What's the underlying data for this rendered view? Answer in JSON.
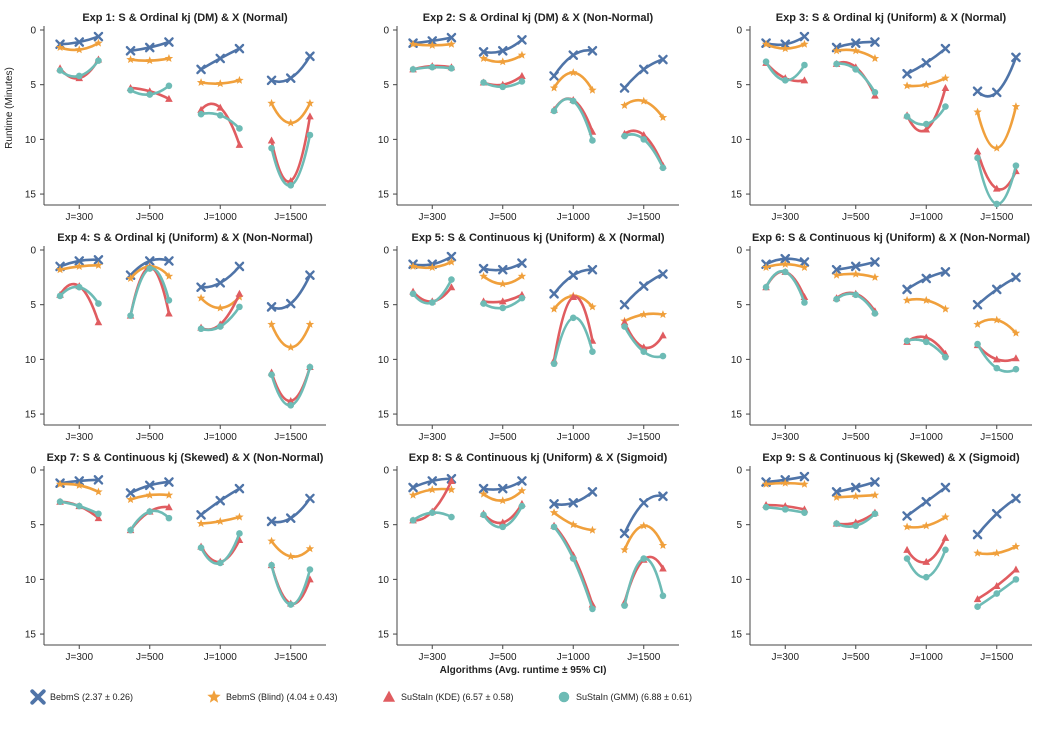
{
  "figure": {
    "ylabel": "Runtime (Minutes)",
    "xlabel": "Algorithms (Avg. runtime ± 95% CI)"
  },
  "legend": [
    {
      "label": "BebmS (2.37 ± 0.26)",
      "color": "#4f74a8",
      "marker": "x"
    },
    {
      "label": "BebmS (Blind) (4.04 ± 0.43)",
      "color": "#f0a03c",
      "marker": "star"
    },
    {
      "label": "SuStaIn (KDE) (6.57 ± 0.58)",
      "color": "#e05c60",
      "marker": "triangle"
    },
    {
      "label": "SuStaIn (GMM) (6.88 ± 0.61)",
      "color": "#6dbbb5",
      "marker": "circle"
    }
  ],
  "chart_data": [
    {
      "type": "line",
      "title": "Exp 1: S & Ordinal kj (DM) & X (Normal)",
      "categories": [
        "J=300",
        "J=500",
        "J=1000",
        "J=1500"
      ],
      "ylim": [
        0,
        16
      ],
      "y_inverted": true,
      "y_ticks": [
        0,
        5,
        10,
        15
      ],
      "series": [
        {
          "name": "BebmS",
          "values": [
            [
              1.3,
              1.1,
              0.6
            ],
            [
              1.9,
              1.6,
              1.1
            ],
            [
              3.6,
              2.6,
              1.7
            ],
            [
              4.6,
              4.4,
              2.4
            ]
          ]
        },
        {
          "name": "BebmS (Blind)",
          "values": [
            [
              1.6,
              1.8,
              1.2
            ],
            [
              2.7,
              2.8,
              2.6
            ],
            [
              4.8,
              4.9,
              4.6
            ],
            [
              6.7,
              8.5,
              6.7
            ]
          ]
        },
        {
          "name": "SuStaIn (KDE)",
          "values": [
            [
              3.5,
              4.4,
              2.7
            ],
            [
              5.3,
              5.6,
              6.3
            ],
            [
              7.3,
              7.1,
              10.5
            ],
            [
              10.1,
              13.8,
              7.9
            ]
          ]
        },
        {
          "name": "SuStaIn (GMM)",
          "values": [
            [
              3.7,
              4.2,
              2.8
            ],
            [
              5.5,
              5.9,
              5.1
            ],
            [
              7.7,
              7.8,
              9.0
            ],
            [
              10.8,
              14.2,
              9.6
            ]
          ]
        }
      ]
    },
    {
      "type": "line",
      "title": "Exp 2: S & Ordinal kj (DM) & X (Non-Normal)",
      "categories": [
        "J=300",
        "J=500",
        "J=1000",
        "J=1500"
      ],
      "ylim": [
        0,
        16
      ],
      "y_inverted": true,
      "y_ticks": [
        0,
        5,
        10,
        15
      ],
      "series": [
        {
          "name": "BebmS",
          "values": [
            [
              1.2,
              1.0,
              0.7
            ],
            [
              2.0,
              1.9,
              0.9
            ],
            [
              4.2,
              2.3,
              1.9
            ],
            [
              5.3,
              3.6,
              2.7
            ]
          ]
        },
        {
          "name": "BebmS (Blind)",
          "values": [
            [
              1.3,
              1.4,
              1.3
            ],
            [
              2.6,
              2.9,
              2.3
            ],
            [
              5.3,
              3.9,
              5.5
            ],
            [
              6.9,
              6.5,
              8.0
            ]
          ]
        },
        {
          "name": "SuStaIn (KDE)",
          "values": [
            [
              3.6,
              3.3,
              3.4
            ],
            [
              4.8,
              5.0,
              4.2
            ],
            [
              7.3,
              6.4,
              9.3
            ],
            [
              9.5,
              9.6,
              12.4
            ]
          ]
        },
        {
          "name": "SuStaIn (GMM)",
          "values": [
            [
              3.6,
              3.4,
              3.5
            ],
            [
              4.8,
              5.2,
              4.7
            ],
            [
              7.4,
              6.5,
              10.1
            ],
            [
              9.7,
              10.0,
              12.6
            ]
          ]
        }
      ]
    },
    {
      "type": "line",
      "title": "Exp 3: S & Ordinal kj (Uniform) & X (Normal)",
      "categories": [
        "J=300",
        "J=500",
        "J=1000",
        "J=1500"
      ],
      "ylim": [
        0,
        16
      ],
      "y_inverted": true,
      "y_ticks": [
        0,
        5,
        10,
        15
      ],
      "series": [
        {
          "name": "BebmS",
          "values": [
            [
              1.2,
              1.3,
              0.6
            ],
            [
              1.6,
              1.2,
              1.1
            ],
            [
              4.0,
              3.0,
              1.7
            ],
            [
              5.6,
              5.7,
              2.5
            ]
          ]
        },
        {
          "name": "BebmS (Blind)",
          "values": [
            [
              1.3,
              1.7,
              1.3
            ],
            [
              1.9,
              1.9,
              2.6
            ],
            [
              5.1,
              5.0,
              4.4
            ],
            [
              7.5,
              10.8,
              7.0
            ]
          ]
        },
        {
          "name": "SuStaIn (KDE)",
          "values": [
            [
              3.0,
              4.4,
              4.6
            ],
            [
              3.1,
              3.4,
              6.0
            ],
            [
              7.8,
              9.1,
              5.3
            ],
            [
              11.1,
              14.5,
              12.9
            ]
          ]
        },
        {
          "name": "SuStaIn (GMM)",
          "values": [
            [
              2.9,
              4.6,
              3.2
            ],
            [
              3.1,
              3.6,
              5.7
            ],
            [
              7.9,
              8.6,
              7.0
            ],
            [
              11.7,
              15.9,
              12.4
            ]
          ]
        }
      ]
    },
    {
      "type": "line",
      "title": "Exp 4: S & Ordinal kj (Uniform) & X (Non-Normal)",
      "categories": [
        "J=300",
        "J=500",
        "J=1000",
        "J=1500"
      ],
      "ylim": [
        0,
        16
      ],
      "y_inverted": true,
      "y_ticks": [
        0,
        5,
        10,
        15
      ],
      "series": [
        {
          "name": "BebmS",
          "values": [
            [
              1.5,
              1.0,
              0.9
            ],
            [
              2.3,
              1.0,
              1.0
            ],
            [
              3.4,
              3.0,
              1.5
            ],
            [
              5.2,
              4.9,
              2.3
            ]
          ]
        },
        {
          "name": "BebmS (Blind)",
          "values": [
            [
              1.8,
              1.5,
              1.4
            ],
            [
              2.6,
              1.5,
              2.4
            ],
            [
              4.4,
              5.3,
              4.3
            ],
            [
              6.8,
              8.9,
              6.8
            ]
          ]
        },
        {
          "name": "SuStaIn (KDE)",
          "values": [
            [
              4.1,
              3.3,
              6.6
            ],
            [
              6.0,
              1.6,
              5.8
            ],
            [
              7.1,
              6.8,
              4.0
            ],
            [
              11.2,
              13.8,
              10.7
            ]
          ]
        },
        {
          "name": "SuStaIn (GMM)",
          "values": [
            [
              4.2,
              3.4,
              4.9
            ],
            [
              6.0,
              1.7,
              4.6
            ],
            [
              7.2,
              7.0,
              5.2
            ],
            [
              11.4,
              14.2,
              10.7
            ]
          ]
        }
      ]
    },
    {
      "type": "line",
      "title": "Exp 5: S & Continuous kj (Uniform) & X (Normal)",
      "categories": [
        "J=300",
        "J=500",
        "J=1000",
        "J=1500"
      ],
      "ylim": [
        0,
        16
      ],
      "y_inverted": true,
      "y_ticks": [
        0,
        5,
        10,
        15
      ],
      "series": [
        {
          "name": "BebmS",
          "values": [
            [
              1.3,
              1.3,
              0.6
            ],
            [
              1.7,
              1.8,
              1.2
            ],
            [
              4.0,
              2.3,
              1.8
            ],
            [
              5.0,
              3.3,
              2.2
            ]
          ]
        },
        {
          "name": "BebmS (Blind)",
          "values": [
            [
              1.5,
              1.6,
              1.1
            ],
            [
              2.4,
              3.1,
              2.4
            ],
            [
              5.4,
              4.2,
              5.2
            ],
            [
              6.5,
              5.9,
              5.9
            ]
          ]
        },
        {
          "name": "SuStaIn (KDE)",
          "values": [
            [
              3.8,
              4.7,
              3.4
            ],
            [
              4.7,
              4.7,
              4.1
            ],
            [
              10.1,
              4.3,
              8.3
            ],
            [
              6.6,
              8.9,
              7.8
            ]
          ]
        },
        {
          "name": "SuStaIn (GMM)",
          "values": [
            [
              4.0,
              4.8,
              2.7
            ],
            [
              4.9,
              5.3,
              4.4
            ],
            [
              10.4,
              6.2,
              9.3
            ],
            [
              7.0,
              9.3,
              9.7
            ]
          ]
        }
      ]
    },
    {
      "type": "line",
      "title": "Exp 6: S & Continuous kj (Uniform) & X (Non-Normal)",
      "categories": [
        "J=300",
        "J=500",
        "J=1000",
        "J=1500"
      ],
      "ylim": [
        0,
        16
      ],
      "y_inverted": true,
      "y_ticks": [
        0,
        5,
        10,
        15
      ],
      "series": [
        {
          "name": "BebmS",
          "values": [
            [
              1.3,
              0.8,
              1.1
            ],
            [
              1.8,
              1.5,
              1.1
            ],
            [
              3.6,
              2.6,
              2.0
            ],
            [
              5.0,
              3.6,
              2.5
            ]
          ]
        },
        {
          "name": "BebmS (Blind)",
          "values": [
            [
              1.6,
              1.3,
              1.6
            ],
            [
              2.3,
              2.2,
              2.5
            ],
            [
              4.6,
              4.6,
              5.4
            ],
            [
              6.8,
              6.4,
              7.6
            ]
          ]
        },
        {
          "name": "SuStaIn (KDE)",
          "values": [
            [
              3.4,
              2.0,
              4.3
            ],
            [
              4.4,
              4.0,
              5.6
            ],
            [
              8.4,
              8.0,
              9.5
            ],
            [
              8.7,
              10.0,
              9.9
            ]
          ]
        },
        {
          "name": "SuStaIn (GMM)",
          "values": [
            [
              3.4,
              2.0,
              4.8
            ],
            [
              4.5,
              4.1,
              5.8
            ],
            [
              8.3,
              8.4,
              9.8
            ],
            [
              8.6,
              10.8,
              10.9
            ]
          ]
        }
      ]
    },
    {
      "type": "line",
      "title": "Exp 7: S & Continuous kj (Skewed) & X (Non-Normal)",
      "categories": [
        "J=300",
        "J=500",
        "J=1000",
        "J=1500"
      ],
      "ylim": [
        0,
        16
      ],
      "y_inverted": true,
      "y_ticks": [
        0,
        5,
        10,
        15
      ],
      "series": [
        {
          "name": "BebmS",
          "values": [
            [
              1.2,
              1.0,
              0.9
            ],
            [
              2.1,
              1.4,
              1.1
            ],
            [
              4.1,
              2.8,
              1.7
            ],
            [
              4.7,
              4.4,
              2.6
            ]
          ]
        },
        {
          "name": "BebmS (Blind)",
          "values": [
            [
              1.3,
              1.4,
              2.0
            ],
            [
              2.7,
              2.3,
              2.3
            ],
            [
              4.9,
              4.7,
              4.3
            ],
            [
              6.5,
              7.9,
              7.2
            ]
          ]
        },
        {
          "name": "SuStaIn (KDE)",
          "values": [
            [
              2.9,
              3.3,
              4.4
            ],
            [
              5.5,
              3.8,
              3.4
            ],
            [
              7.0,
              8.4,
              6.4
            ],
            [
              8.7,
              12.2,
              10.0
            ]
          ]
        },
        {
          "name": "SuStaIn (GMM)",
          "values": [
            [
              2.9,
              3.3,
              4.0
            ],
            [
              5.5,
              3.8,
              4.4
            ],
            [
              7.1,
              8.5,
              5.8
            ],
            [
              8.7,
              12.3,
              9.1
            ]
          ]
        }
      ]
    },
    {
      "type": "line",
      "title": "Exp 8: S & Continuous kj (Uniform) & X (Sigmoid)",
      "categories": [
        "J=300",
        "J=500",
        "J=1000",
        "J=1500"
      ],
      "ylim": [
        0,
        16
      ],
      "y_inverted": true,
      "y_ticks": [
        0,
        5,
        10,
        15
      ],
      "series": [
        {
          "name": "BebmS",
          "values": [
            [
              1.6,
              1.0,
              0.8
            ],
            [
              1.7,
              1.7,
              1.0
            ],
            [
              3.1,
              3.0,
              2.0
            ],
            [
              5.8,
              3.0,
              2.4
            ]
          ]
        },
        {
          "name": "BebmS (Blind)",
          "values": [
            [
              2.3,
              1.8,
              1.8
            ],
            [
              2.2,
              2.8,
              1.9
            ],
            [
              3.9,
              5.0,
              5.5
            ],
            [
              7.3,
              5.1,
              6.9
            ]
          ]
        },
        {
          "name": "SuStaIn (KDE)",
          "values": [
            [
              4.6,
              3.8,
              1.0
            ],
            [
              4.0,
              4.8,
              3.1
            ],
            [
              5.1,
              7.8,
              12.3
            ],
            [
              12.1,
              8.2,
              9.0
            ]
          ]
        },
        {
          "name": "SuStaIn (GMM)",
          "values": [
            [
              4.6,
              3.9,
              4.3
            ],
            [
              4.1,
              5.2,
              3.3
            ],
            [
              5.2,
              8.1,
              12.7
            ],
            [
              12.4,
              8.1,
              11.5
            ]
          ]
        }
      ]
    },
    {
      "type": "line",
      "title": "Exp 9: S & Continuous kj (Skewed) & X (Sigmoid)",
      "categories": [
        "J=300",
        "J=500",
        "J=1000",
        "J=1500"
      ],
      "ylim": [
        0,
        16
      ],
      "y_inverted": true,
      "y_ticks": [
        0,
        5,
        10,
        15
      ],
      "series": [
        {
          "name": "BebmS",
          "values": [
            [
              1.1,
              0.9,
              0.6
            ],
            [
              2.0,
              1.6,
              1.1
            ],
            [
              4.2,
              2.9,
              1.6
            ],
            [
              5.9,
              4.0,
              2.6
            ]
          ]
        },
        {
          "name": "BebmS (Blind)",
          "values": [
            [
              1.3,
              1.2,
              1.3
            ],
            [
              2.5,
              2.4,
              2.3
            ],
            [
              5.2,
              5.1,
              4.3
            ],
            [
              7.6,
              7.6,
              7.0
            ]
          ]
        },
        {
          "name": "SuStaIn (KDE)",
          "values": [
            [
              3.2,
              3.3,
              3.6
            ],
            [
              4.9,
              4.8,
              3.9
            ],
            [
              7.3,
              8.4,
              6.2
            ],
            [
              11.8,
              10.6,
              9.1
            ]
          ]
        },
        {
          "name": "SuStaIn (GMM)",
          "values": [
            [
              3.4,
              3.6,
              3.9
            ],
            [
              4.9,
              5.1,
              4.0
            ],
            [
              8.1,
              9.8,
              7.3
            ],
            [
              12.5,
              11.3,
              10.0
            ]
          ]
        }
      ]
    }
  ]
}
